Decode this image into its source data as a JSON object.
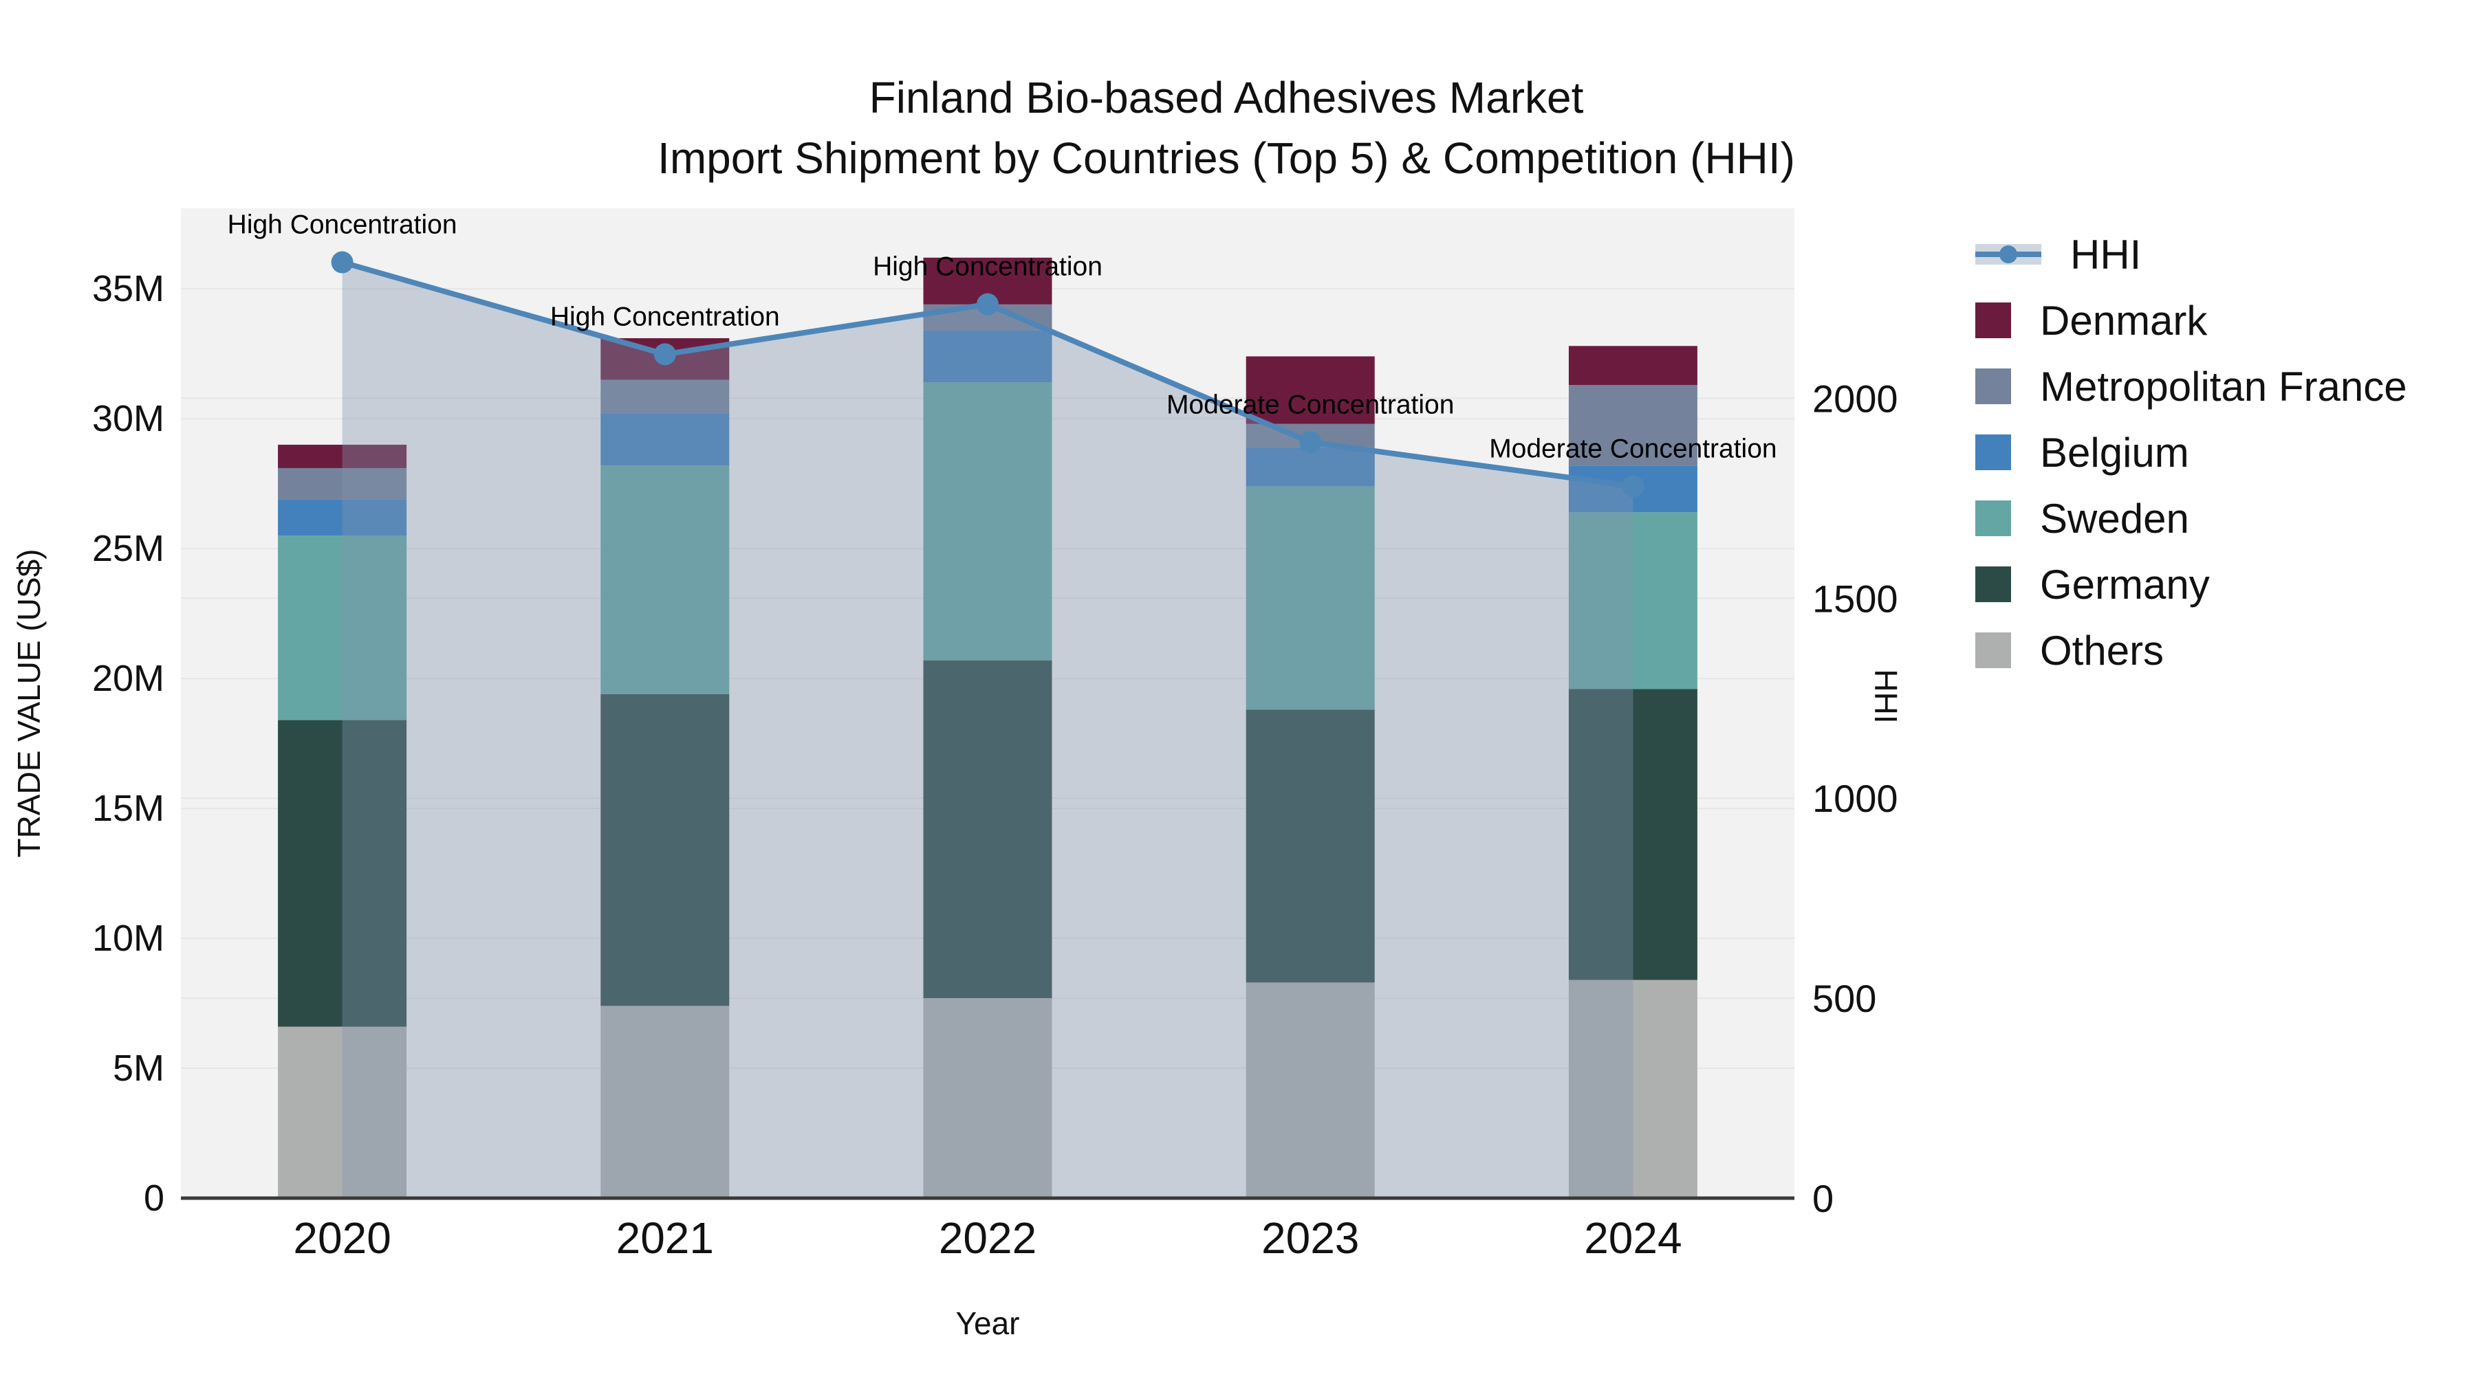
{
  "title": {
    "line1": "Finland Bio-based Adhesives Market",
    "line2": "Import Shipment by Countries (Top 5) & Competition (HHI)"
  },
  "chart_data": {
    "type": "bar",
    "subtype": "stacked-bars-with-secondary-axis-line",
    "title_line1": "Finland Bio-based Adhesives Market",
    "title_line2": "Import Shipment by Countries (Top 5) & Competition (HHI)",
    "categories": [
      "2020",
      "2021",
      "2022",
      "2023",
      "2024"
    ],
    "unit": "million US$",
    "series": [
      {
        "name": "Others",
        "color": "#aeb0af",
        "values": [
          6.6,
          7.4,
          7.7,
          8.3,
          8.4
        ]
      },
      {
        "name": "Germany",
        "color": "#2d4b46",
        "values": [
          11.8,
          12.0,
          13.0,
          10.5,
          11.2
        ]
      },
      {
        "name": "Sweden",
        "color": "#64a6a3",
        "values": [
          7.1,
          8.8,
          10.7,
          8.6,
          6.8
        ]
      },
      {
        "name": "Belgium",
        "color": "#4381bd",
        "values": [
          1.4,
          2.0,
          2.0,
          1.5,
          1.8
        ]
      },
      {
        "name": "Metropolitan France",
        "color": "#74839b",
        "values": [
          1.2,
          1.3,
          1.0,
          0.9,
          3.1
        ]
      },
      {
        "name": "Denmark",
        "color": "#6b1c3e",
        "values": [
          0.9,
          1.6,
          1.8,
          2.6,
          1.5
        ]
      }
    ],
    "stack_totals": [
      29.0,
      33.1,
      36.2,
      32.4,
      32.8
    ],
    "line": {
      "name": "HHI",
      "axis": "right",
      "color": "#4e86b8",
      "fill": "rgba(130,148,173,0.38)",
      "values": [
        2340,
        2110,
        2235,
        1890,
        1780
      ]
    },
    "annotations": [
      {
        "category": "2020",
        "text": "High Concentration"
      },
      {
        "category": "2021",
        "text": "High Concentration"
      },
      {
        "category": "2022",
        "text": "High Concentration"
      },
      {
        "category": "2023",
        "text": "Moderate Concentration"
      },
      {
        "category": "2024",
        "text": "Moderate Concentration"
      }
    ],
    "xlabel": "Year",
    "ylabel": "TRADE VALUE (US$)",
    "y2label": "HHI",
    "yticks": [
      "0",
      "5M",
      "10M",
      "15M",
      "20M",
      "25M",
      "30M",
      "35M"
    ],
    "ytick_values": [
      0,
      5,
      10,
      15,
      20,
      25,
      30,
      35
    ],
    "y2ticks": [
      "0",
      "500",
      "1000",
      "1500",
      "2000"
    ],
    "y2tick_values": [
      0,
      500,
      1000,
      1500,
      2000
    ],
    "ylim": [
      0,
      38.1
    ],
    "y2lim": [
      0,
      2475
    ],
    "legend_order": [
      "HHI",
      "Denmark",
      "Metropolitan France",
      "Belgium",
      "Sweden",
      "Germany",
      "Others"
    ],
    "grid": true,
    "legend_position": "right",
    "plot_bg": "#f2f2f2",
    "grid_color": "#e6e6e6",
    "axisline_color": "#3a3a3a",
    "text_color": "#111111"
  }
}
